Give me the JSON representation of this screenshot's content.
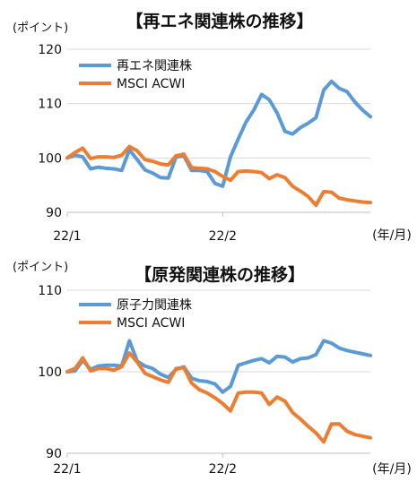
{
  "colors": {
    "theme": "#5b9bd5",
    "acwi": "#ed7d31",
    "grid": "#d9d9d9",
    "axis": "#bfbfbf"
  },
  "chart_data": [
    {
      "type": "line",
      "title": "【再エネ関連株の推移】",
      "ylabel": "(ポイント)",
      "xunit": "(年/月)",
      "ylim": [
        90,
        120
      ],
      "yticks": [
        90,
        100,
        110,
        120
      ],
      "xtick_labels": [
        "22/1",
        "22/2"
      ],
      "xtick_index": [
        0,
        20
      ],
      "grid": true,
      "legend": "top-left",
      "series": [
        {
          "name": "再エネ関連株",
          "values": [
            100,
            100.5,
            100.2,
            98,
            98.3,
            98.1,
            98,
            97.7,
            101.5,
            99.7,
            97.8,
            97.2,
            96.4,
            96.3,
            100.2,
            100.4,
            97.7,
            97.7,
            97.5,
            95.3,
            94.8,
            100.2,
            103.5,
            106.6,
            108.8,
            111.7,
            110.7,
            108.3,
            104.9,
            104.4,
            105.6,
            106.4,
            107.4,
            112.5,
            114.1,
            112.8,
            112.2,
            110.3,
            108.8,
            107.6
          ]
        },
        {
          "name": "MSCI ACWI",
          "values": [
            100,
            101,
            101.8,
            99.9,
            100.2,
            100.2,
            100.1,
            100.5,
            102.1,
            101.3,
            99.7,
            99.4,
            98.9,
            98.7,
            100.4,
            100.7,
            98.2,
            98.1,
            98,
            97.5,
            96.6,
            95.9,
            97.5,
            97.6,
            97.5,
            97.3,
            96.2,
            96.9,
            96.4,
            94.8,
            93.9,
            92.9,
            91.3,
            93.8,
            93.7,
            92.6,
            92.3,
            92.1,
            91.9,
            91.8
          ]
        }
      ]
    },
    {
      "type": "line",
      "title": "【原発関連株の推移】",
      "ylabel": "(ポイント)",
      "xunit": "(年/月)",
      "ylim": [
        90,
        110
      ],
      "yticks": [
        90,
        100,
        110
      ],
      "xtick_labels": [
        "22/1",
        "22/2"
      ],
      "xtick_index": [
        0,
        20
      ],
      "grid": true,
      "legend": "top-left",
      "series": [
        {
          "name": "原子力関連株",
          "values": [
            100,
            100.1,
            101.4,
            100.3,
            100.7,
            100.8,
            100.8,
            100.7,
            103.8,
            101.3,
            100.7,
            100.4,
            99.7,
            99.3,
            100.3,
            100.6,
            99.2,
            98.9,
            98.8,
            98.5,
            97.5,
            98.2,
            100.8,
            101.1,
            101.4,
            101.6,
            101.1,
            101.9,
            101.8,
            101.2,
            101.6,
            101.7,
            102.1,
            103.8,
            103.5,
            102.9,
            102.6,
            102.4,
            102.2,
            102
          ]
        },
        {
          "name": "MSCI ACWI",
          "values": [
            100,
            100.4,
            101.7,
            100.1,
            100.4,
            100.4,
            100.2,
            100.6,
            102.3,
            101.2,
            99.8,
            99.4,
            99,
            98.7,
            100.4,
            100.5,
            98.6,
            97.8,
            97.4,
            96.8,
            96.1,
            95.2,
            97.4,
            97.5,
            97.5,
            97.4,
            96,
            96.9,
            96.4,
            95,
            94.2,
            93.3,
            92.5,
            91.4,
            93.6,
            93.6,
            92.7,
            92.3,
            92.1,
            91.9
          ]
        }
      ]
    }
  ]
}
